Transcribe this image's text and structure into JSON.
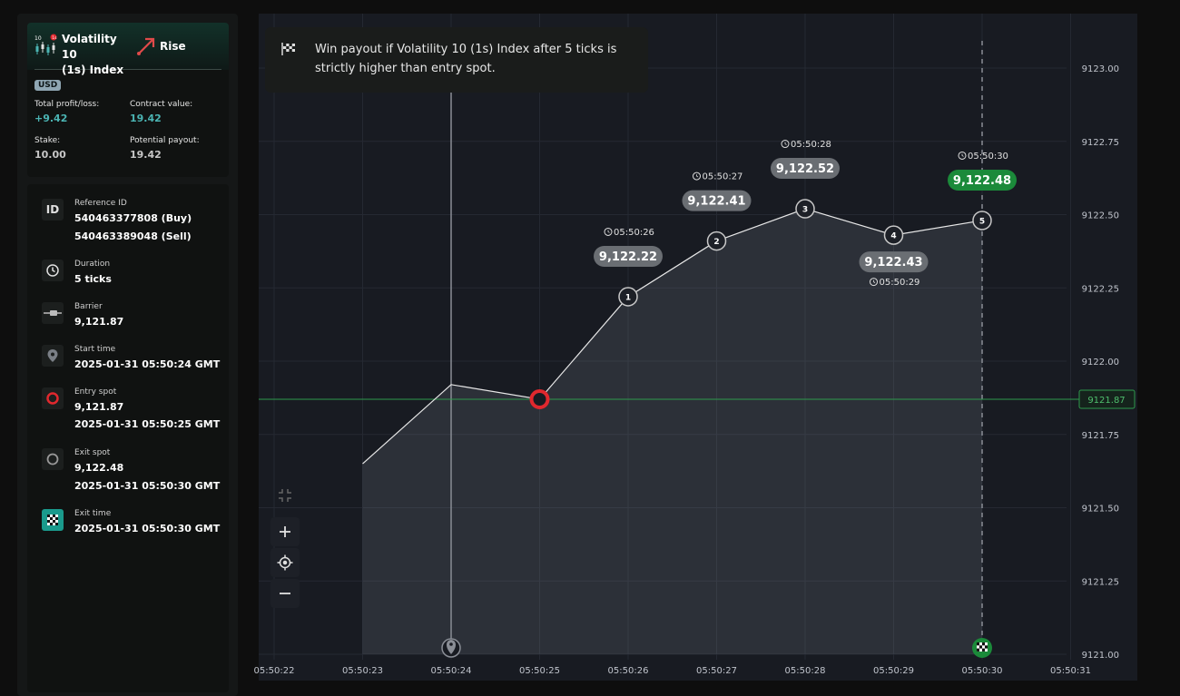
{
  "contract": {
    "asset_name_line1": "Volatility 10",
    "asset_name_line2": "(1s) Index",
    "direction": "Rise",
    "currency": "USD",
    "total_pl_label": "Total profit/loss:",
    "total_pl_value": "+9.42",
    "contract_value_label": "Contract value:",
    "contract_value": "19.42",
    "stake_label": "Stake:",
    "stake_value": "10.00",
    "potential_payout_label": "Potential payout:",
    "potential_payout_value": "19.42"
  },
  "details": {
    "ref_icon": "ID",
    "ref_label": "Reference ID",
    "ref_buy": "540463377808 (Buy)",
    "ref_sell": "540463389048 (Sell)",
    "duration_label": "Duration",
    "duration_value": "5 ticks",
    "barrier_label": "Barrier",
    "barrier_value": "9,121.87",
    "start_label": "Start time",
    "start_value": "2025-01-31 05:50:24 GMT",
    "entry_label": "Entry spot",
    "entry_value": "9,121.87",
    "entry_time": "2025-01-31 05:50:25 GMT",
    "exit_spot_label": "Exit spot",
    "exit_spot_value": "9,122.48",
    "exit_spot_time": "2025-01-31 05:50:30 GMT",
    "exit_time_label": "Exit time",
    "exit_time_value": "2025-01-31 05:50:30 GMT"
  },
  "tooltip": {
    "text": "Win payout if Volatility 10 (1s) Index after 5 ticks is strictly higher than entry spot."
  },
  "colors": {
    "accent_green": "#1b8a3a",
    "barrier_line": "#2e9a4c",
    "entry_red": "#e0282e",
    "profit_teal": "#4bb4b3"
  },
  "chart_data": {
    "type": "line",
    "x_ticks": [
      "05:50:22",
      "05:50:23",
      "05:50:24",
      "05:50:25",
      "05:50:26",
      "05:50:27",
      "05:50:28",
      "05:50:29",
      "05:50:30",
      "05:50:31"
    ],
    "y_ticks": [
      "9123.00",
      "9122.75",
      "9122.50",
      "9122.25",
      "9122.00",
      "9121.75",
      "9121.50",
      "9121.25",
      "9121.00"
    ],
    "ylim": [
      9121.0,
      9123.0
    ],
    "barrier": 9121.87,
    "barrier_label": "9121.87",
    "series": [
      {
        "values": [
          {
            "t": "05:50:23",
            "y": 9121.65
          },
          {
            "t": "05:50:24",
            "y": 9121.92
          },
          {
            "t": "05:50:25",
            "y": 9121.87
          },
          {
            "t": "05:50:26",
            "y": 9122.22
          },
          {
            "t": "05:50:27",
            "y": 9122.41
          },
          {
            "t": "05:50:28",
            "y": 9122.52
          },
          {
            "t": "05:50:29",
            "y": 9122.43
          },
          {
            "t": "05:50:30",
            "y": 9122.48
          }
        ]
      }
    ],
    "ticks": [
      {
        "n": "1",
        "time": "05:50:26",
        "value": "9,122.22",
        "above": true,
        "win": false
      },
      {
        "n": "2",
        "time": "05:50:27",
        "value": "9,122.41",
        "above": true,
        "win": false
      },
      {
        "n": "3",
        "time": "05:50:28",
        "value": "9,122.52",
        "above": true,
        "win": false
      },
      {
        "n": "4",
        "time": "05:50:29",
        "value": "9,122.43",
        "above": false,
        "win": false
      },
      {
        "n": "5",
        "time": "05:50:30",
        "value": "9,122.48",
        "above": true,
        "win": true
      }
    ],
    "start_time": "05:50:24",
    "entry_time": "05:50:25",
    "exit_time": "05:50:30",
    "grid": true
  }
}
